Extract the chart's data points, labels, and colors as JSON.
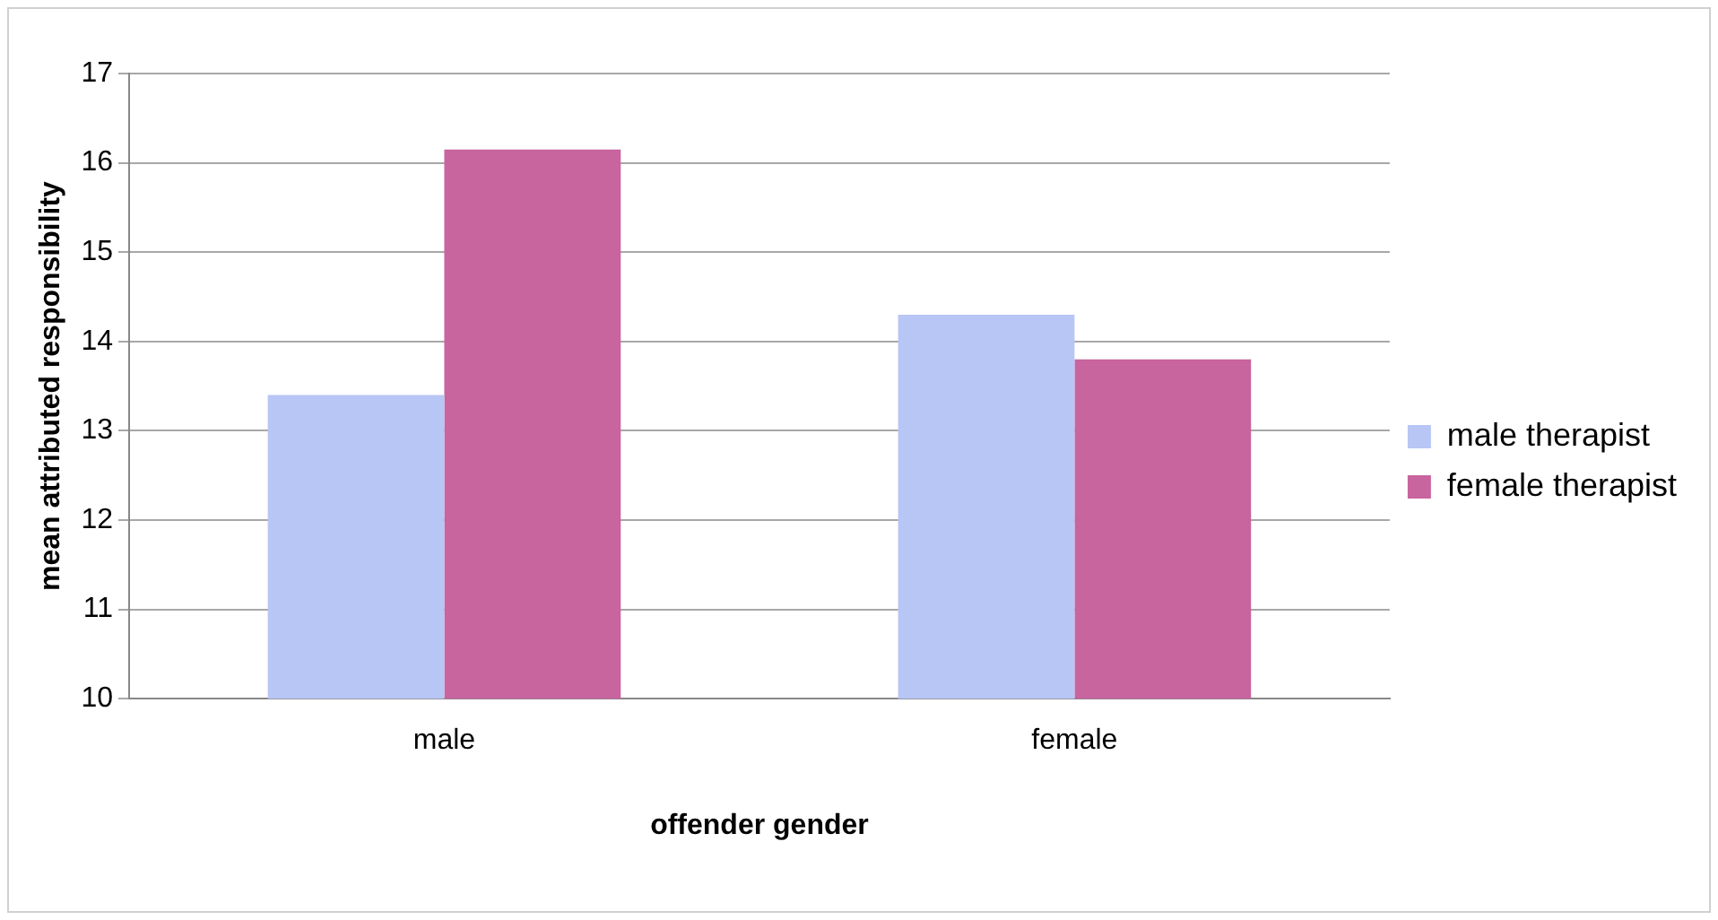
{
  "chart_data": {
    "type": "bar",
    "xlabel": "offender gender",
    "ylabel": "mean attributed responsibility",
    "categories": [
      "male",
      "female"
    ],
    "series": [
      {
        "name": "male therapist",
        "color": "#b8c6f5",
        "values": [
          13.4,
          14.3
        ]
      },
      {
        "name": "female therapist",
        "color": "#c8649e",
        "values": [
          16.15,
          13.8
        ]
      }
    ],
    "ylim": [
      10,
      17
    ],
    "yticks": [
      10,
      11,
      12,
      13,
      14,
      15,
      16,
      17
    ],
    "grid": "y",
    "legend": "right"
  }
}
